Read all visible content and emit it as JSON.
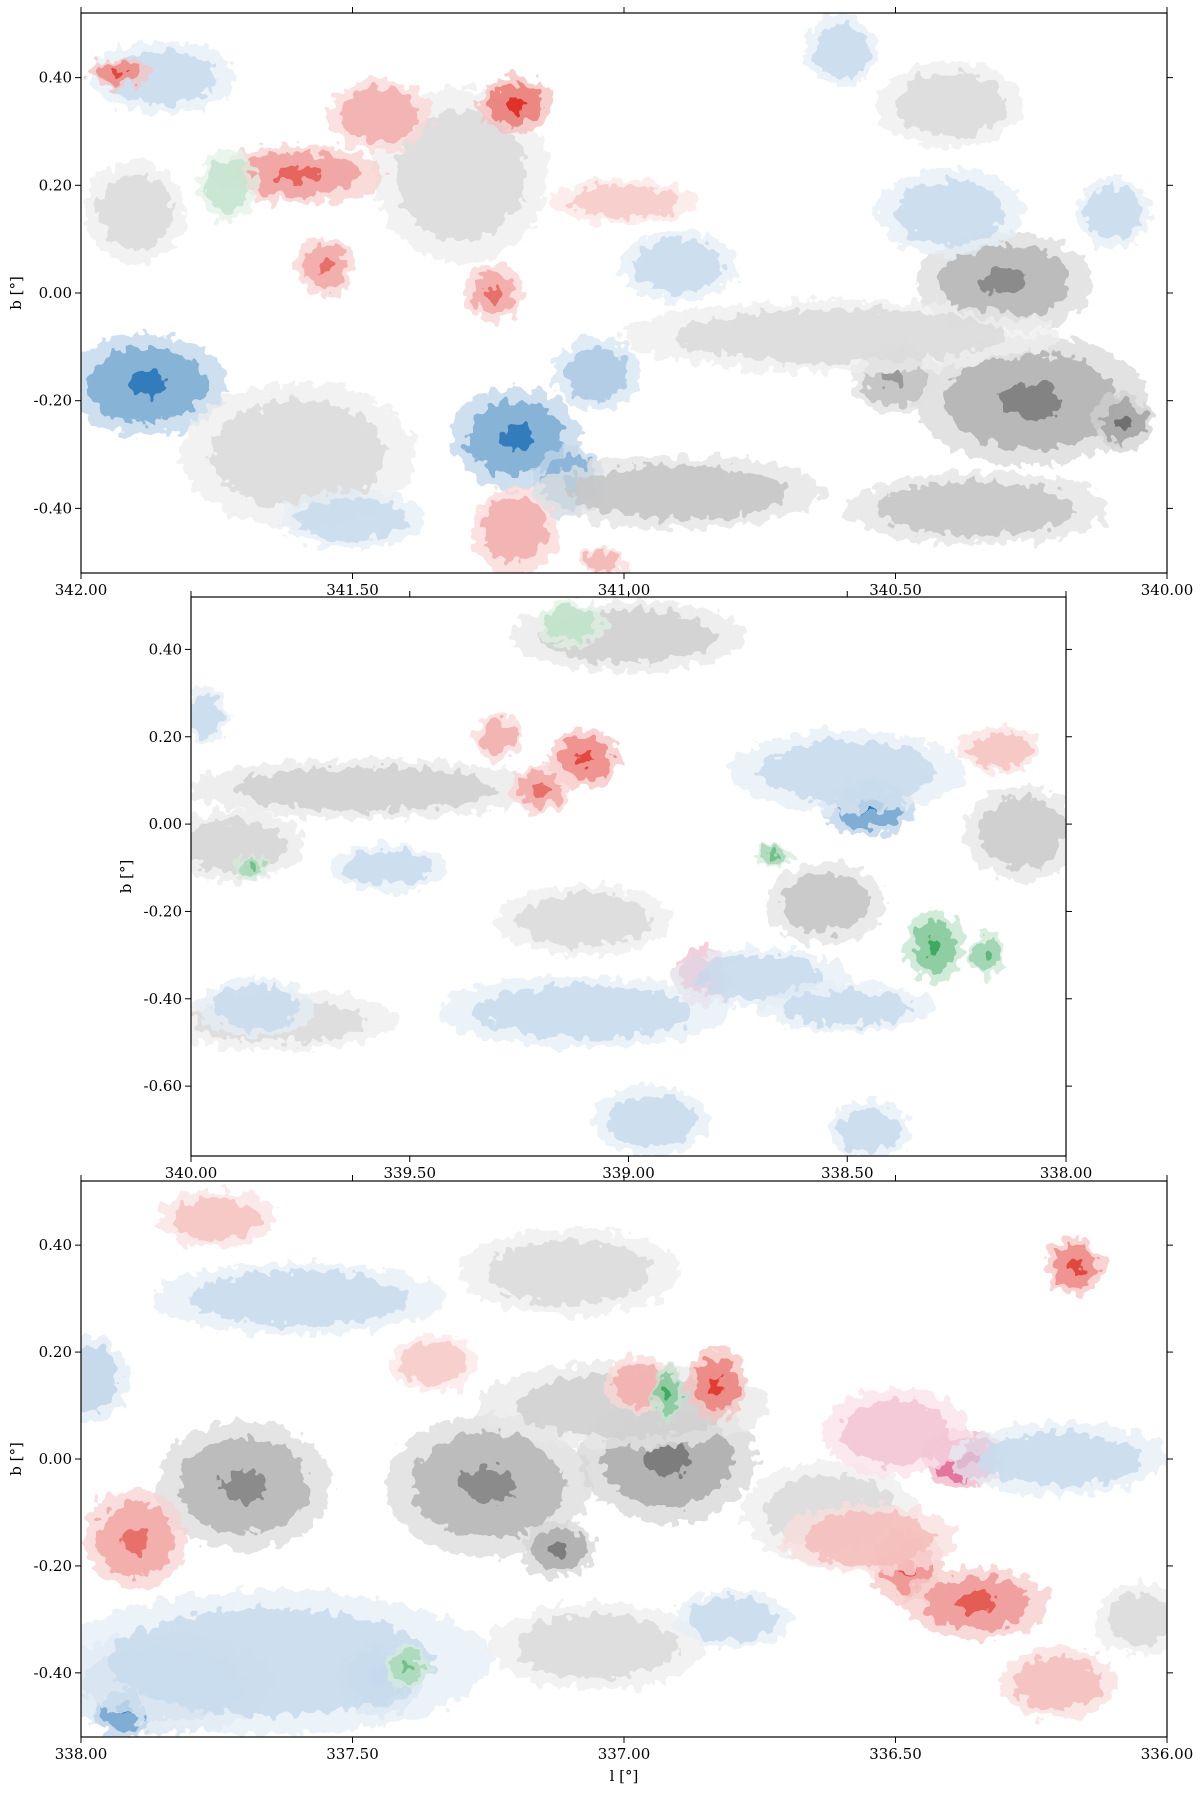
{
  "chart_data": [
    {
      "type": "heatmap",
      "xlabel": "",
      "ylabel": "b [°]",
      "xlim": [
        342.0,
        340.0
      ],
      "ylim": [
        -0.52,
        0.52
      ],
      "x_ticks": [
        "342.00",
        "341.50",
        "341.00",
        "340.50",
        "340.00"
      ],
      "x_tick_values": [
        342.0,
        341.5,
        341.0,
        340.5,
        340.0
      ],
      "y_ticks": [
        "0.40",
        "0.20",
        "0.00",
        "-0.20",
        "-0.40"
      ],
      "y_tick_values": [
        0.4,
        0.2,
        0.0,
        -0.2,
        -0.4
      ],
      "grid": false,
      "colors": {
        "gray": "#6b6b6b",
        "blue": "#2171b5",
        "red": "#de2d26",
        "green": "#31a354",
        "purple": "#ce1256"
      },
      "clumps": [
        {
          "l": 341.88,
          "b": -0.17,
          "ry": 0.07,
          "rx": 0.11,
          "color": "blue",
          "level": 0.85
        },
        {
          "l": 341.2,
          "b": -0.27,
          "ry": 0.07,
          "rx": 0.09,
          "color": "blue",
          "level": 0.85
        },
        {
          "l": 341.1,
          "b": -0.35,
          "ry": 0.05,
          "rx": 0.05,
          "color": "blue",
          "level": 0.8
        },
        {
          "l": 341.6,
          "b": -0.3,
          "ry": 0.1,
          "rx": 0.16,
          "color": "gray",
          "level": 0.25
        },
        {
          "l": 341.3,
          "b": 0.22,
          "ry": 0.12,
          "rx": 0.12,
          "color": "gray",
          "level": 0.35
        },
        {
          "l": 341.45,
          "b": 0.33,
          "ry": 0.05,
          "rx": 0.07,
          "color": "red",
          "level": 0.55
        },
        {
          "l": 341.2,
          "b": 0.35,
          "ry": 0.04,
          "rx": 0.05,
          "color": "red",
          "level": 0.9
        },
        {
          "l": 341.6,
          "b": 0.22,
          "ry": 0.04,
          "rx": 0.12,
          "color": "red",
          "level": 0.65
        },
        {
          "l": 341.73,
          "b": 0.2,
          "ry": 0.05,
          "rx": 0.04,
          "color": "green",
          "level": 0.4
        },
        {
          "l": 341.24,
          "b": 0.0,
          "ry": 0.04,
          "rx": 0.04,
          "color": "red",
          "level": 0.6
        },
        {
          "l": 341.2,
          "b": -0.44,
          "ry": 0.06,
          "rx": 0.06,
          "color": "red",
          "level": 0.55
        },
        {
          "l": 340.3,
          "b": 0.02,
          "ry": 0.07,
          "rx": 0.12,
          "color": "gray",
          "level": 0.7
        },
        {
          "l": 340.25,
          "b": -0.2,
          "ry": 0.09,
          "rx": 0.16,
          "color": "gray",
          "level": 0.75
        },
        {
          "l": 340.08,
          "b": -0.24,
          "ry": 0.04,
          "rx": 0.04,
          "color": "gray",
          "level": 0.9
        },
        {
          "l": 340.5,
          "b": -0.16,
          "ry": 0.05,
          "rx": 0.06,
          "color": "gray",
          "level": 0.6
        },
        {
          "l": 340.9,
          "b": -0.37,
          "ry": 0.05,
          "rx": 0.2,
          "color": "gray",
          "level": 0.55
        },
        {
          "l": 340.35,
          "b": -0.4,
          "ry": 0.05,
          "rx": 0.18,
          "color": "gray",
          "level": 0.55
        },
        {
          "l": 341.05,
          "b": -0.15,
          "ry": 0.05,
          "rx": 0.06,
          "color": "blue",
          "level": 0.55
        },
        {
          "l": 340.6,
          "b": -0.08,
          "ry": 0.05,
          "rx": 0.3,
          "color": "gray",
          "level": 0.35
        },
        {
          "l": 341.0,
          "b": 0.17,
          "ry": 0.03,
          "rx": 0.1,
          "color": "red",
          "level": 0.35
        },
        {
          "l": 340.4,
          "b": 0.15,
          "ry": 0.06,
          "rx": 0.1,
          "color": "blue",
          "level": 0.3
        },
        {
          "l": 340.1,
          "b": 0.15,
          "ry": 0.05,
          "rx": 0.05,
          "color": "blue",
          "level": 0.3
        },
        {
          "l": 340.4,
          "b": 0.35,
          "ry": 0.06,
          "rx": 0.1,
          "color": "gray",
          "level": 0.3
        },
        {
          "l": 340.6,
          "b": 0.45,
          "ry": 0.05,
          "rx": 0.05,
          "color": "blue",
          "level": 0.3
        },
        {
          "l": 341.85,
          "b": 0.4,
          "ry": 0.05,
          "rx": 0.1,
          "color": "blue",
          "level": 0.3
        },
        {
          "l": 341.93,
          "b": 0.41,
          "ry": 0.02,
          "rx": 0.04,
          "color": "red",
          "level": 0.8
        },
        {
          "l": 341.9,
          "b": 0.15,
          "ry": 0.07,
          "rx": 0.07,
          "color": "gray",
          "level": 0.3
        },
        {
          "l": 341.55,
          "b": 0.05,
          "ry": 0.04,
          "rx": 0.04,
          "color": "red",
          "level": 0.6
        },
        {
          "l": 341.04,
          "b": -0.5,
          "ry": 0.02,
          "rx": 0.03,
          "color": "red",
          "level": 0.5
        },
        {
          "l": 341.5,
          "b": -0.42,
          "ry": 0.04,
          "rx": 0.1,
          "color": "blue",
          "level": 0.3
        },
        {
          "l": 340.9,
          "b": 0.05,
          "ry": 0.05,
          "rx": 0.08,
          "color": "blue",
          "level": 0.3
        }
      ]
    },
    {
      "type": "heatmap",
      "xlabel": "",
      "ylabel": "b [°]",
      "xlim": [
        340.0,
        338.0
      ],
      "ylim": [
        -0.76,
        0.52
      ],
      "x_ticks": [
        "340.00",
        "339.50",
        "339.00",
        "338.50",
        "338.00"
      ],
      "x_tick_values": [
        340.0,
        339.5,
        339.0,
        338.5,
        338.0
      ],
      "y_ticks": [
        "0.40",
        "0.20",
        "0.00",
        "-0.20",
        "-0.40",
        "-0.60"
      ],
      "y_tick_values": [
        0.4,
        0.2,
        0.0,
        -0.2,
        -0.4,
        -0.6
      ],
      "grid": false,
      "colors": {
        "gray": "#6b6b6b",
        "blue": "#2171b5",
        "red": "#de2d26",
        "green": "#31a354",
        "purple": "#ce1256"
      },
      "clumps": [
        {
          "l": 339.6,
          "b": 0.08,
          "ry": 0.05,
          "rx": 0.3,
          "color": "gray",
          "level": 0.45
        },
        {
          "l": 339.9,
          "b": -0.05,
          "ry": 0.06,
          "rx": 0.12,
          "color": "gray",
          "level": 0.4
        },
        {
          "l": 338.45,
          "b": 0.04,
          "ry": 0.05,
          "rx": 0.08,
          "color": "blue",
          "level": 0.9
        },
        {
          "l": 338.5,
          "b": 0.12,
          "ry": 0.07,
          "rx": 0.2,
          "color": "blue",
          "level": 0.35
        },
        {
          "l": 339.1,
          "b": 0.15,
          "ry": 0.05,
          "rx": 0.06,
          "color": "red",
          "level": 0.8
        },
        {
          "l": 339.2,
          "b": 0.08,
          "ry": 0.04,
          "rx": 0.05,
          "color": "red",
          "level": 0.6
        },
        {
          "l": 339.3,
          "b": 0.2,
          "ry": 0.04,
          "rx": 0.04,
          "color": "red",
          "level": 0.55
        },
        {
          "l": 338.83,
          "b": -0.35,
          "ry": 0.05,
          "rx": 0.05,
          "color": "purple",
          "level": 0.8
        },
        {
          "l": 338.7,
          "b": -0.35,
          "ry": 0.05,
          "rx": 0.15,
          "color": "blue",
          "level": 0.25
        },
        {
          "l": 338.3,
          "b": -0.28,
          "ry": 0.06,
          "rx": 0.05,
          "color": "green",
          "level": 0.85
        },
        {
          "l": 338.18,
          "b": -0.3,
          "ry": 0.04,
          "rx": 0.03,
          "color": "green",
          "level": 0.7
        },
        {
          "l": 338.55,
          "b": -0.18,
          "ry": 0.07,
          "rx": 0.1,
          "color": "gray",
          "level": 0.55
        },
        {
          "l": 339.0,
          "b": 0.43,
          "ry": 0.06,
          "rx": 0.2,
          "color": "gray",
          "level": 0.45
        },
        {
          "l": 339.13,
          "b": 0.46,
          "ry": 0.04,
          "rx": 0.06,
          "color": "green",
          "level": 0.45
        },
        {
          "l": 338.95,
          "b": -0.68,
          "ry": 0.06,
          "rx": 0.1,
          "color": "blue",
          "level": 0.3
        },
        {
          "l": 338.45,
          "b": -0.7,
          "ry": 0.05,
          "rx": 0.07,
          "color": "blue",
          "level": 0.3
        },
        {
          "l": 339.1,
          "b": -0.43,
          "ry": 0.06,
          "rx": 0.25,
          "color": "blue",
          "level": 0.3
        },
        {
          "l": 339.8,
          "b": -0.45,
          "ry": 0.05,
          "rx": 0.2,
          "color": "gray",
          "level": 0.3
        },
        {
          "l": 339.85,
          "b": -0.42,
          "ry": 0.05,
          "rx": 0.1,
          "color": "blue",
          "level": 0.25
        },
        {
          "l": 338.1,
          "b": -0.02,
          "ry": 0.08,
          "rx": 0.1,
          "color": "gray",
          "level": 0.5
        },
        {
          "l": 338.15,
          "b": 0.17,
          "ry": 0.04,
          "rx": 0.07,
          "color": "red",
          "level": 0.4
        },
        {
          "l": 339.55,
          "b": -0.1,
          "ry": 0.04,
          "rx": 0.1,
          "color": "blue",
          "level": 0.35
        },
        {
          "l": 338.67,
          "b": -0.07,
          "ry": 0.02,
          "rx": 0.03,
          "color": "green",
          "level": 0.6
        },
        {
          "l": 339.86,
          "b": -0.1,
          "ry": 0.02,
          "rx": 0.03,
          "color": "green",
          "level": 0.6
        },
        {
          "l": 339.1,
          "b": -0.22,
          "ry": 0.06,
          "rx": 0.15,
          "color": "gray",
          "level": 0.3
        },
        {
          "l": 338.5,
          "b": -0.42,
          "ry": 0.04,
          "rx": 0.15,
          "color": "blue",
          "level": 0.25
        },
        {
          "l": 339.97,
          "b": 0.25,
          "ry": 0.05,
          "rx": 0.04,
          "color": "blue",
          "level": 0.3
        }
      ]
    },
    {
      "type": "heatmap",
      "xlabel": "l [°]",
      "ylabel": "b [°]",
      "xlim": [
        338.0,
        336.0
      ],
      "ylim": [
        -0.52,
        0.52
      ],
      "x_ticks": [
        "338.00",
        "337.50",
        "337.00",
        "336.50",
        "336.00"
      ],
      "x_tick_values": [
        338.0,
        337.5,
        337.0,
        336.5,
        336.0
      ],
      "y_ticks": [
        "0.40",
        "0.20",
        "0.00",
        "-0.20",
        "-0.40"
      ],
      "y_tick_values": [
        0.4,
        0.2,
        0.0,
        -0.2,
        -0.4
      ],
      "grid": false,
      "colors": {
        "gray": "#6b6b6b",
        "blue": "#2171b5",
        "red": "#de2d26",
        "green": "#31a354",
        "purple": "#ce1256"
      },
      "clumps": [
        {
          "l": 337.7,
          "b": -0.05,
          "ry": 0.09,
          "rx": 0.12,
          "color": "gray",
          "level": 0.7
        },
        {
          "l": 337.25,
          "b": -0.05,
          "ry": 0.1,
          "rx": 0.14,
          "color": "gray",
          "level": 0.7
        },
        {
          "l": 336.92,
          "b": 0.0,
          "ry": 0.09,
          "rx": 0.12,
          "color": "gray",
          "level": 0.8
        },
        {
          "l": 337.12,
          "b": -0.17,
          "ry": 0.04,
          "rx": 0.05,
          "color": "gray",
          "level": 0.8
        },
        {
          "l": 336.62,
          "b": -0.1,
          "ry": 0.07,
          "rx": 0.12,
          "color": "gray",
          "level": 0.35
        },
        {
          "l": 337.0,
          "b": 0.1,
          "ry": 0.06,
          "rx": 0.2,
          "color": "gray",
          "level": 0.45
        },
        {
          "l": 336.37,
          "b": 0.0,
          "ry": 0.04,
          "rx": 0.06,
          "color": "purple",
          "level": 0.9
        },
        {
          "l": 336.5,
          "b": 0.05,
          "ry": 0.06,
          "rx": 0.1,
          "color": "purple",
          "level": 0.35
        },
        {
          "l": 336.48,
          "b": -0.2,
          "ry": 0.05,
          "rx": 0.05,
          "color": "red",
          "level": 0.75
        },
        {
          "l": 336.35,
          "b": -0.27,
          "ry": 0.05,
          "rx": 0.1,
          "color": "red",
          "level": 0.7
        },
        {
          "l": 336.55,
          "b": -0.15,
          "ry": 0.05,
          "rx": 0.12,
          "color": "red",
          "level": 0.45
        },
        {
          "l": 336.83,
          "b": 0.14,
          "ry": 0.05,
          "rx": 0.04,
          "color": "red",
          "level": 0.85
        },
        {
          "l": 336.97,
          "b": 0.14,
          "ry": 0.04,
          "rx": 0.05,
          "color": "red",
          "level": 0.55
        },
        {
          "l": 336.92,
          "b": 0.12,
          "ry": 0.04,
          "rx": 0.02,
          "color": "green",
          "level": 0.85
        },
        {
          "l": 337.85,
          "b": -0.42,
          "ry": 0.07,
          "rx": 0.15,
          "color": "blue",
          "level": 0.5
        },
        {
          "l": 337.92,
          "b": -0.47,
          "ry": 0.04,
          "rx": 0.04,
          "color": "blue",
          "level": 0.9
        },
        {
          "l": 337.45,
          "b": -0.41,
          "ry": 0.05,
          "rx": 0.06,
          "color": "blue",
          "level": 0.85
        },
        {
          "l": 337.65,
          "b": -0.38,
          "ry": 0.1,
          "rx": 0.3,
          "color": "blue",
          "level": 0.25
        },
        {
          "l": 337.4,
          "b": -0.39,
          "ry": 0.03,
          "rx": 0.03,
          "color": "green",
          "level": 0.6
        },
        {
          "l": 337.9,
          "b": -0.15,
          "ry": 0.07,
          "rx": 0.07,
          "color": "red",
          "level": 0.6
        },
        {
          "l": 336.17,
          "b": 0.36,
          "ry": 0.04,
          "rx": 0.04,
          "color": "red",
          "level": 0.8
        },
        {
          "l": 337.6,
          "b": 0.3,
          "ry": 0.05,
          "rx": 0.2,
          "color": "blue",
          "level": 0.3
        },
        {
          "l": 337.75,
          "b": 0.45,
          "ry": 0.04,
          "rx": 0.08,
          "color": "red",
          "level": 0.4
        },
        {
          "l": 336.2,
          "b": 0.0,
          "ry": 0.05,
          "rx": 0.15,
          "color": "blue",
          "level": 0.35
        },
        {
          "l": 337.1,
          "b": 0.35,
          "ry": 0.06,
          "rx": 0.15,
          "color": "gray",
          "level": 0.3
        },
        {
          "l": 336.2,
          "b": -0.42,
          "ry": 0.05,
          "rx": 0.08,
          "color": "red",
          "level": 0.45
        },
        {
          "l": 336.05,
          "b": -0.3,
          "ry": 0.05,
          "rx": 0.06,
          "color": "gray",
          "level": 0.35
        },
        {
          "l": 337.35,
          "b": 0.18,
          "ry": 0.04,
          "rx": 0.06,
          "color": "red",
          "level": 0.35
        },
        {
          "l": 337.05,
          "b": -0.35,
          "ry": 0.06,
          "rx": 0.15,
          "color": "gray",
          "level": 0.3
        },
        {
          "l": 337.98,
          "b": 0.15,
          "ry": 0.06,
          "rx": 0.05,
          "color": "blue",
          "level": 0.4
        },
        {
          "l": 336.8,
          "b": -0.3,
          "ry": 0.04,
          "rx": 0.08,
          "color": "blue",
          "level": 0.25
        }
      ]
    }
  ]
}
